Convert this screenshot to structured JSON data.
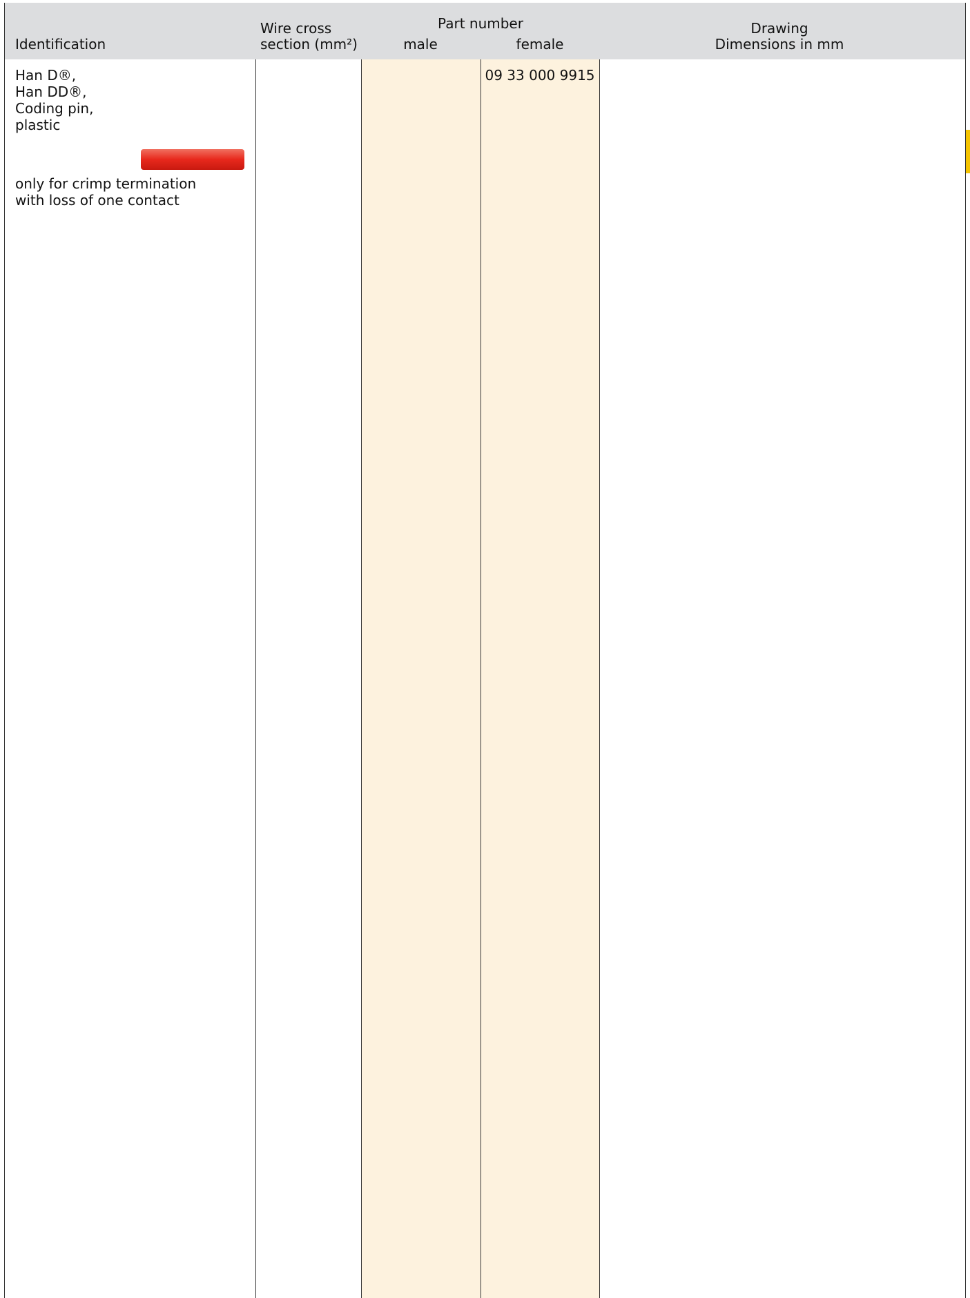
{
  "header": {
    "identification": "Identification",
    "wire_cross_section": [
      "Wire cross",
      "section (mm²)"
    ],
    "part_number": "Part number",
    "male": "male",
    "female": "female",
    "drawing": [
      "Drawing",
      "Dimensions in mm"
    ]
  },
  "rows": [
    {
      "identification": [
        "Han D®,",
        "Han DD®,",
        "Coding pin,",
        "plastic"
      ],
      "note": [
        "only for crimp termination",
        "with loss of one contact"
      ],
      "female": "09 33 000 9915"
    }
  ]
}
